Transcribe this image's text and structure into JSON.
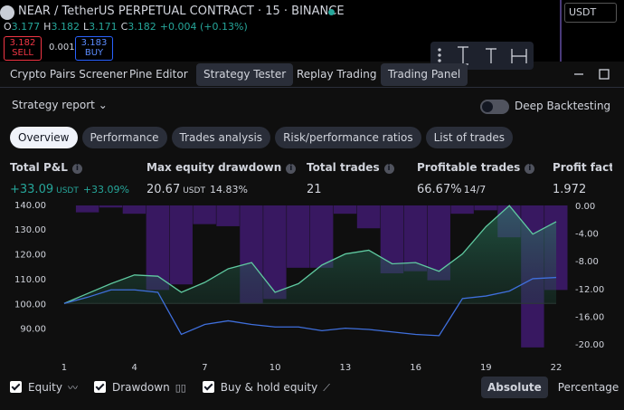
{
  "header": {
    "symbol": "NEAR / TetherUS PERPETUAL CONTRACT · 15 · BINANCE",
    "ohlc": [
      {
        "label": "O",
        "value": "3.177"
      },
      {
        "label": "H",
        "value": "3.182"
      },
      {
        "label": "L",
        "value": "3.171"
      },
      {
        "label": "C",
        "value": "3.182"
      }
    ],
    "change": "+0.004 (+0.13%)",
    "sell_price": "3.182",
    "sell_label": "SELL",
    "spread": "0.001",
    "buy_price": "3.183",
    "buy_label": "BUY",
    "currency": "USDT"
  },
  "tabs": [
    "Crypto Pairs Screener",
    "Pine Editor",
    "Strategy Tester",
    "Replay Trading",
    "Trading Panel"
  ],
  "report_title": "Strategy report",
  "toggle_label": "Deep Backtesting",
  "subtabs": [
    "Overview",
    "Performance",
    "Trades analysis",
    "Risk/performance ratios",
    "List of trades"
  ],
  "metrics": [
    {
      "label": "Total P&L",
      "value": "+33.09",
      "unit": "USDT",
      "extra": "+33.09%"
    },
    {
      "label": "Max equity drawdown",
      "value": "20.67",
      "unit": "USDT",
      "extra": "14.83%"
    },
    {
      "label": "Total trades",
      "value": "21"
    },
    {
      "label": "Profitable trades",
      "value": "66.67%",
      "extra": "14/7"
    },
    {
      "label": "Profit factor",
      "value": "1.972"
    }
  ],
  "chart_data": {
    "type": "combo",
    "x": [
      1,
      2,
      3,
      4,
      5,
      6,
      7,
      8,
      9,
      10,
      11,
      12,
      13,
      14,
      15,
      16,
      17,
      18,
      19,
      20,
      21,
      22
    ],
    "xlim": [
      0.5,
      22.5
    ],
    "xticks": [
      1,
      4,
      7,
      10,
      13,
      16,
      19,
      22
    ],
    "ylim": [
      80,
      141.4
    ],
    "yticks": [
      {
        "value": 90,
        "label": "90.00"
      },
      {
        "value": 100,
        "label": "100.00"
      },
      {
        "value": 110,
        "label": "110.00"
      },
      {
        "value": 120,
        "label": "120.00"
      },
      {
        "value": 130,
        "label": "130.00"
      },
      {
        "value": 140,
        "label": "140.00"
      }
    ],
    "y2lim": [
      -21.3,
      0.65
    ],
    "y2ticks": [
      {
        "value": 0,
        "label": "0.00"
      },
      {
        "value": -4,
        "label": "-4.00"
      },
      {
        "value": -8,
        "label": "-8.00"
      },
      {
        "value": -12,
        "label": "-12.00"
      },
      {
        "value": -16,
        "label": "-16.00"
      },
      {
        "value": -20,
        "label": "-20.00"
      }
    ],
    "series": [
      {
        "name": "Equity",
        "kind": "line",
        "color": "#5fc9a0",
        "values": [
          100,
          104,
          108,
          111.5,
          111,
          104.5,
          108.5,
          114,
          116.5,
          104.5,
          108,
          115.5,
          120,
          121.5,
          116,
          116.5,
          113,
          120,
          131,
          139.5,
          128,
          133
        ]
      },
      {
        "name": "Drawdown",
        "kind": "bar",
        "axis": "y2",
        "color": "#3f1a70",
        "x": [
          2,
          3,
          4,
          5,
          6,
          7,
          8,
          9,
          10,
          11,
          12,
          13,
          14,
          15,
          16,
          17,
          18,
          19,
          20,
          21,
          22
        ],
        "values": [
          -1.0,
          -0.3,
          -1.2,
          -12.2,
          -11.4,
          -2.7,
          -3.0,
          -14.2,
          -13.5,
          -9.0,
          -9.0,
          -1.2,
          -3.3,
          -9.8,
          -9.5,
          -10.8,
          -1.2,
          -0.7,
          -4.6,
          -20.5,
          -12.2
        ]
      },
      {
        "name": "Buy & hold equity",
        "kind": "line",
        "color": "#3f6fdc",
        "values": [
          100,
          102.5,
          105.5,
          105.5,
          104.5,
          87.5,
          91.5,
          93,
          91.5,
          90.5,
          90.5,
          89,
          90,
          89.5,
          88.5,
          87.5,
          87,
          102,
          103,
          105,
          110,
          110.5
        ]
      }
    ]
  },
  "view_modes": [
    "Absolute",
    "Percentage"
  ]
}
